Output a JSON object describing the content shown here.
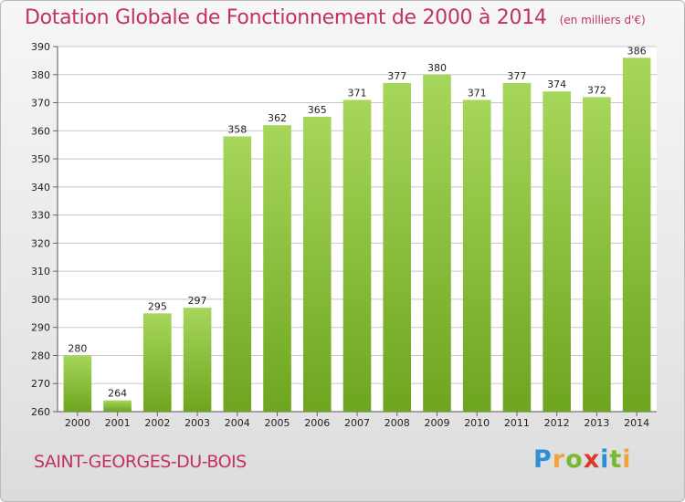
{
  "header": {
    "title": "Dotation Globale de Fonctionnement de 2000 à 2014",
    "unit": "(en milliers d'€)"
  },
  "footer": {
    "commune": "SAINT-GEORGES-DU-BOIS",
    "logo": {
      "parts": [
        "P",
        "r",
        "o",
        "x",
        "i",
        "t",
        "i"
      ]
    }
  },
  "colors": {
    "bar_light": "#a6d65a",
    "bar_dark": "#6ea51f",
    "grid": "#c8c8c8",
    "title": "#c1335e"
  },
  "chart_data": {
    "type": "bar",
    "title": "Dotation Globale de Fonctionnement de 2000 à 2014",
    "subtitle": "(en milliers d'€)",
    "xlabel": "",
    "ylabel": "",
    "categories": [
      "2000",
      "2001",
      "2002",
      "2003",
      "2004",
      "2005",
      "2006",
      "2007",
      "2008",
      "2009",
      "2010",
      "2011",
      "2012",
      "2013",
      "2014"
    ],
    "values": [
      280,
      264,
      295,
      297,
      358,
      362,
      365,
      371,
      377,
      380,
      371,
      377,
      374,
      372,
      386
    ],
    "ylim": [
      260,
      390
    ],
    "yticks": [
      260,
      270,
      280,
      290,
      300,
      310,
      320,
      330,
      340,
      350,
      360,
      370,
      380,
      390
    ],
    "grid": true,
    "legend": "none"
  }
}
